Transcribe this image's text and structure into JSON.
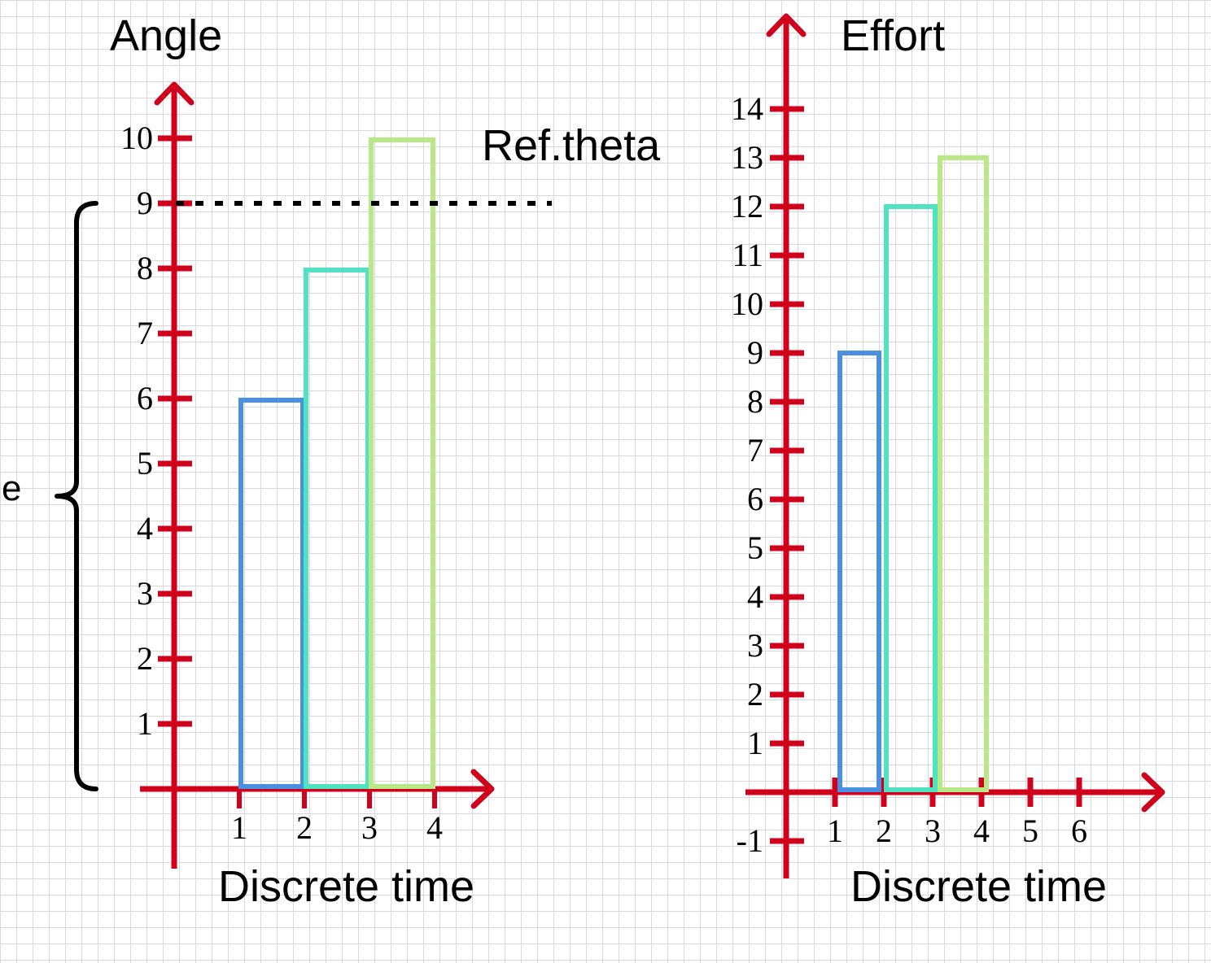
{
  "colors": {
    "axis": "#d0021b",
    "bar1": "#4a90e2",
    "bar2": "#50e3c2",
    "bar3": "#b8e986",
    "reference": "#000000",
    "brace": "#000000"
  },
  "side_label": "e",
  "chart_data": [
    {
      "type": "bar",
      "title": "",
      "ylabel": "Angle",
      "xlabel": "Discrete time",
      "x_ticks": [
        "1",
        "2",
        "3",
        "4"
      ],
      "y_ticks": [
        "1",
        "2",
        "3",
        "4",
        "5",
        "6",
        "7",
        "8",
        "9",
        "10"
      ],
      "ylim": [
        0,
        10
      ],
      "bars": [
        {
          "x_start": 1,
          "x_end": 2,
          "value": 6,
          "color": "#4a90e2"
        },
        {
          "x_start": 2,
          "x_end": 3,
          "value": 8,
          "color": "#50e3c2"
        },
        {
          "x_start": 3,
          "x_end": 4,
          "value": 10,
          "color": "#b8e986"
        }
      ],
      "reference": {
        "value": 9,
        "label": "Ref.theta",
        "style": "dotted"
      },
      "brace": {
        "from": 0,
        "to": 9,
        "side": "left"
      },
      "grid": true
    },
    {
      "type": "bar",
      "title": "",
      "ylabel": "Effort",
      "xlabel": "Discrete time",
      "x_ticks": [
        "1",
        "2",
        "3",
        "4",
        "5",
        "6"
      ],
      "y_ticks": [
        "-1",
        "1",
        "2",
        "3",
        "4",
        "5",
        "6",
        "7",
        "8",
        "9",
        "10",
        "11",
        "12",
        "13",
        "14"
      ],
      "ylim": [
        -1,
        14
      ],
      "bars": [
        {
          "x_start": 1.1,
          "x_end": 1.9,
          "value": 9,
          "color": "#4a90e2"
        },
        {
          "x_start": 2.05,
          "x_end": 3.05,
          "value": 12,
          "color": "#50e3c2"
        },
        {
          "x_start": 3.15,
          "x_end": 4.1,
          "value": 13,
          "color": "#b8e986"
        }
      ],
      "grid": true
    }
  ]
}
